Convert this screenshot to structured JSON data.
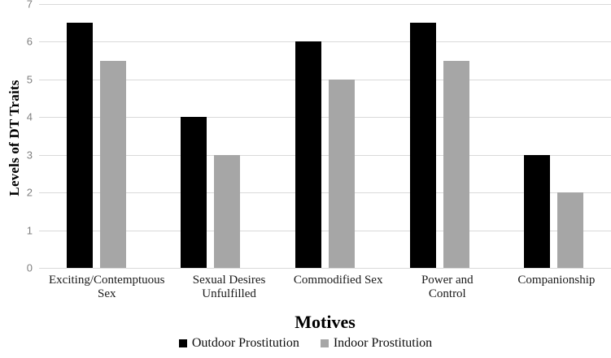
{
  "chart_data": {
    "type": "bar",
    "title": "",
    "xlabel": "Motives",
    "ylabel": "Levels of DT Traits",
    "ylim": [
      0,
      7
    ],
    "ytick_interval": 1,
    "yticks": [
      "0",
      "1",
      "2",
      "3",
      "4",
      "5",
      "6",
      "7"
    ],
    "grid": true,
    "legend_position": "bottom",
    "categories": [
      "Exciting/Contemptuous Sex",
      "Sexual Desires Unfulfilled",
      "Commodified Sex",
      "Power and Control",
      "Companionship"
    ],
    "series": [
      {
        "name": "Outdoor Prostitution",
        "color": "#000000",
        "values": [
          6.5,
          4,
          6,
          6.5,
          3
        ]
      },
      {
        "name": "Indoor Prostitution",
        "color": "#a6a6a6",
        "values": [
          5.5,
          3,
          5,
          5.5,
          2
        ]
      }
    ],
    "colors": {
      "gridline": "#d9d9d9",
      "tick_label": "#7f7f7f",
      "axis_title": "#000000"
    }
  }
}
